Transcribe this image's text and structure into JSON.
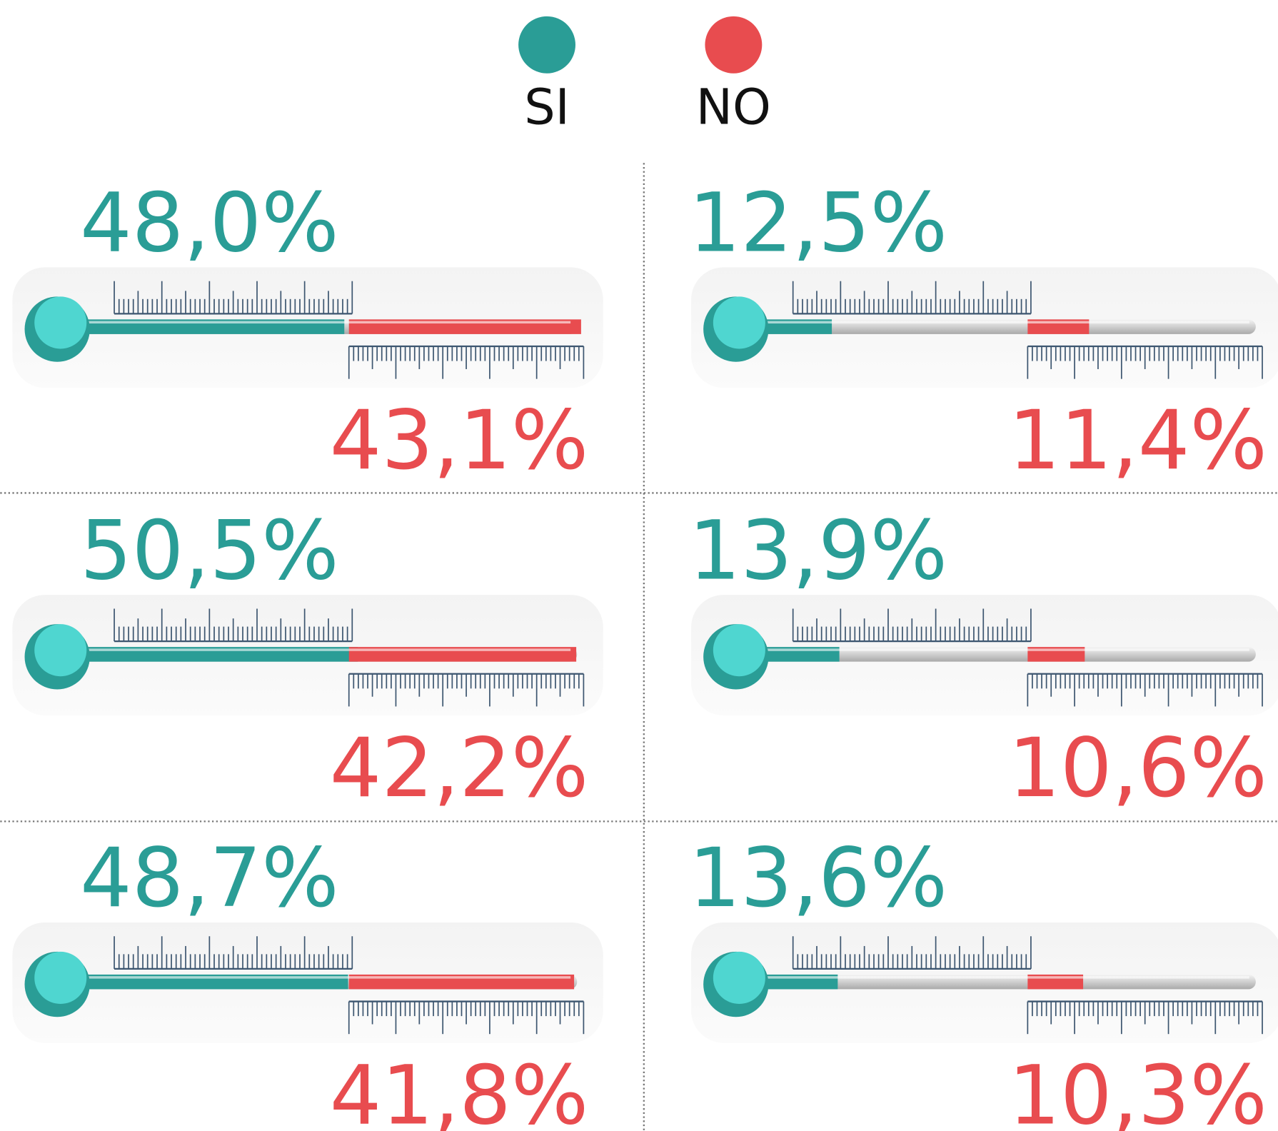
{
  "chart_data": {
    "type": "thermometer",
    "series": [
      {
        "name": "SI",
        "color": "#2a9d96",
        "values": [
          48.0,
          50.5,
          48.7,
          12.5,
          13.9,
          13.6
        ],
        "value_labels": [
          "48,0%",
          "50,5%",
          "48,7%",
          "12,5%",
          "13,9%",
          "13,6%"
        ]
      },
      {
        "name": "NO",
        "color": "#e84c4f",
        "values": [
          43.1,
          42.2,
          41.8,
          11.4,
          10.6,
          10.3
        ],
        "value_labels": [
          "43,1%",
          "42,2%",
          "41,8%",
          "11,4%",
          "10,6%",
          "10,3%"
        ]
      }
    ],
    "xlim": [
      0,
      90
    ]
  }
}
